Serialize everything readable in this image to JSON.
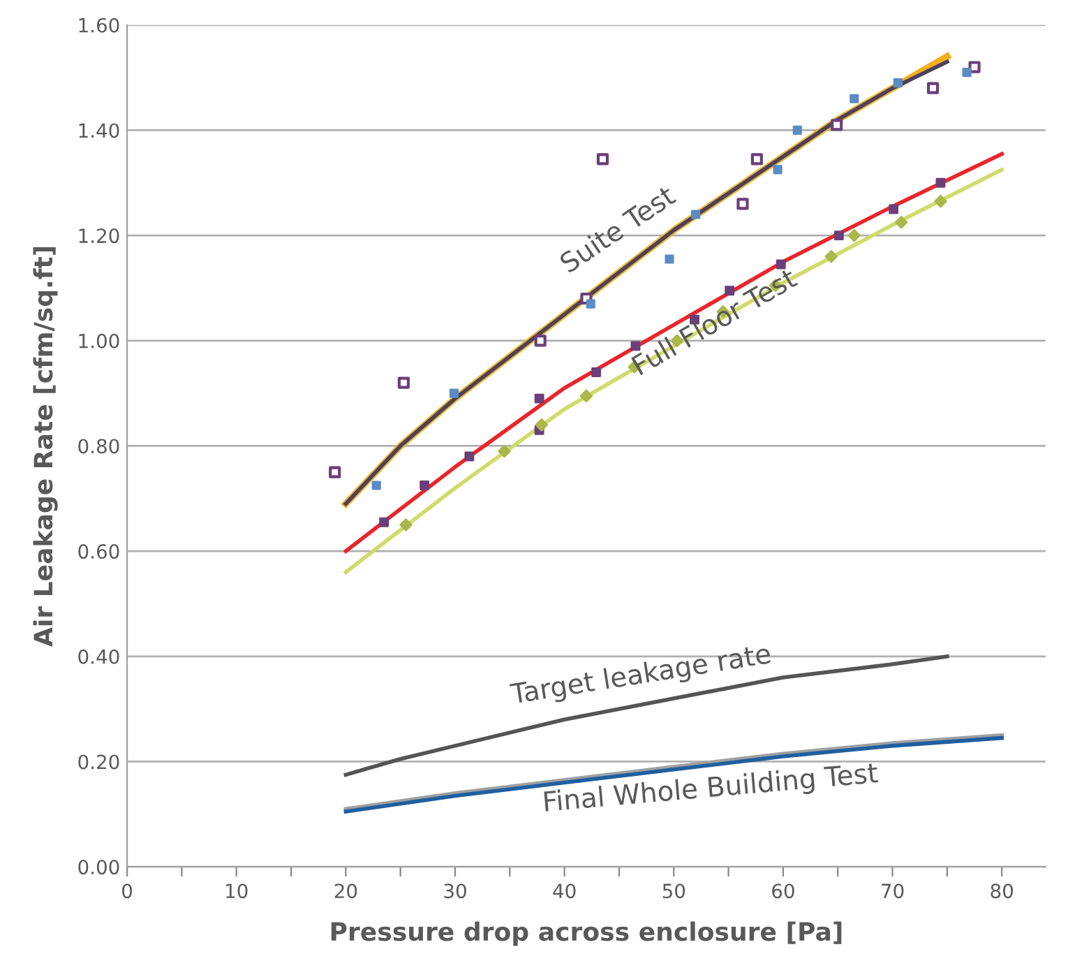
{
  "chart_data": {
    "type": "line",
    "xlabel": "Pressure drop across enclosure [Pa]",
    "ylabel": "Air Leakage Rate [cfm/sq.ft]",
    "xlim": [
      0,
      84
    ],
    "ylim": [
      0,
      1.6
    ],
    "xticks": [
      0,
      {
        "value": 5,
        "label": null
      },
      10,
      {
        "value": 15,
        "label": null
      },
      20,
      {
        "value": 25,
        "label": null
      },
      30,
      {
        "value": 35,
        "label": null
      },
      40,
      {
        "value": 45,
        "label": null
      },
      50,
      {
        "value": 55,
        "label": null
      },
      60,
      {
        "value": 65,
        "label": null
      },
      70,
      {
        "value": 75,
        "label": null
      },
      80
    ],
    "yticks": [
      {
        "value": 0,
        "label": "0.00"
      },
      {
        "value": 0.2,
        "label": "0.20"
      },
      {
        "value": 0.4,
        "label": "0.40"
      },
      {
        "value": 0.6,
        "label": "0.60"
      },
      {
        "value": 0.8,
        "label": "0.80"
      },
      {
        "value": 1.0,
        "label": "1.00"
      },
      {
        "value": 1.2,
        "label": "1.20"
      },
      {
        "value": 1.4,
        "label": "1.40"
      },
      {
        "value": 1.6,
        "label": "1.60"
      }
    ],
    "grid": "y",
    "legend": false,
    "series": [
      {
        "color": "#f2b01e",
        "marker": "none",
        "x": [
          20,
          25,
          30,
          35,
          40,
          45,
          50,
          55,
          60,
          65,
          70,
          75
        ],
        "values": [
          0.69,
          0.8,
          0.89,
          0.97,
          1.05,
          1.13,
          1.21,
          1.28,
          1.35,
          1.42,
          1.48,
          1.54
        ]
      },
      {
        "color": "#4a4060",
        "marker": "none",
        "x": [
          20,
          25,
          30,
          35,
          40,
          45,
          50,
          55,
          60,
          65,
          70,
          75
        ],
        "values": [
          0.69,
          0.8,
          0.89,
          0.97,
          1.05,
          1.13,
          1.21,
          1.28,
          1.35,
          1.42,
          1.48,
          1.53
        ]
      },
      {
        "type": "scatter",
        "color": "#6b3f7a",
        "marker": "square",
        "x": [
          19,
          25.3,
          37.8,
          42,
          43.5,
          56.3,
          57.6,
          64.9,
          73.7,
          77.5
        ],
        "values": [
          0.75,
          0.92,
          1.0,
          1.08,
          1.345,
          1.26,
          1.345,
          1.41,
          1.48,
          1.52
        ]
      },
      {
        "type": "scatter",
        "color": "#5b8cc4",
        "marker": "square",
        "x": [
          22.8,
          29.9,
          42.4,
          49.6,
          52,
          59.5,
          61.3,
          66.5,
          70.5,
          76.8
        ],
        "values": [
          0.725,
          0.9,
          1.07,
          1.155,
          1.24,
          1.325,
          1.4,
          1.46,
          1.49,
          1.51
        ]
      },
      {
        "color": "#e8262b",
        "marker": "none",
        "x": [
          20,
          30,
          40,
          50,
          60,
          70,
          80
        ],
        "values": [
          0.6,
          0.76,
          0.91,
          1.03,
          1.15,
          1.255,
          1.355
        ]
      },
      {
        "type": "scatter",
        "color": "#6b3f7a",
        "marker": "square",
        "x": [
          23.5,
          27.2,
          31.3,
          37.7,
          37.7,
          42.9,
          46.5,
          51.9,
          55.1,
          59.8,
          65.1,
          70.1,
          74.4
        ],
        "values": [
          0.655,
          0.725,
          0.78,
          0.83,
          0.89,
          0.94,
          0.99,
          1.04,
          1.095,
          1.145,
          1.2,
          1.25,
          1.3
        ]
      },
      {
        "color": "#cfdc6a",
        "marker": "none",
        "x": [
          20,
          30,
          40,
          50,
          60,
          70,
          80
        ],
        "values": [
          0.56,
          0.72,
          0.87,
          0.99,
          1.11,
          1.22,
          1.325
        ]
      },
      {
        "type": "scatter",
        "color": "#a9b84a",
        "marker": "diamond",
        "x": [
          25.5,
          34.5,
          37.9,
          42,
          46.4,
          50.3,
          54.5,
          59.3,
          64.4,
          66.5,
          70.8,
          74.4
        ],
        "values": [
          0.65,
          0.79,
          0.84,
          0.895,
          0.95,
          1.0,
          1.055,
          1.105,
          1.16,
          1.2,
          1.225,
          1.265
        ]
      },
      {
        "color": "#555555",
        "marker": "none",
        "x": [
          20,
          25,
          30,
          40,
          50,
          60,
          70,
          75
        ],
        "values": [
          0.175,
          0.205,
          0.23,
          0.28,
          0.32,
          0.36,
          0.385,
          0.4
        ]
      },
      {
        "color": "#a0a0a0",
        "marker": "none",
        "x": [
          20,
          30,
          40,
          50,
          60,
          70,
          80
        ],
        "values": [
          0.11,
          0.14,
          0.165,
          0.19,
          0.215,
          0.235,
          0.25
        ]
      },
      {
        "color": "#1f5f9f",
        "marker": "none",
        "x": [
          20,
          30,
          40,
          50,
          60,
          70,
          80
        ],
        "values": [
          0.105,
          0.135,
          0.16,
          0.185,
          0.21,
          0.23,
          0.245
        ]
      }
    ],
    "annotations": [
      "Suite Test",
      "Full Floor Test",
      "Target leakage rate",
      "Final Whole Building Test"
    ]
  }
}
